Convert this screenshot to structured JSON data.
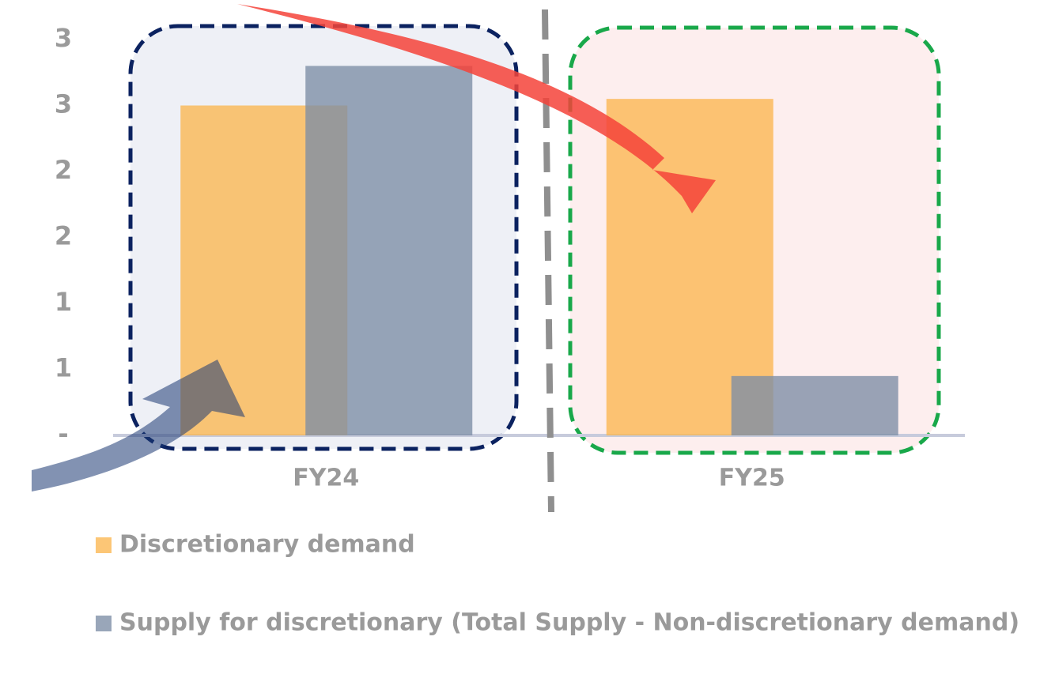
{
  "chart_data": {
    "type": "bar",
    "categories": [
      "FY24",
      "FY25"
    ],
    "series": [
      {
        "name": "Discretionary demand",
        "color": "#fbb650",
        "values": [
          2.5,
          2.55
        ]
      },
      {
        "name": "Supply for discretionary (Total Supply - Non-discretionary demand)",
        "color": "#7c8da5",
        "values": [
          2.8,
          0.45
        ]
      }
    ],
    "ylim": [
      0,
      3
    ],
    "yticks": [
      {
        "value": 0,
        "label": "-"
      },
      {
        "value": 0.5,
        "label": "1"
      },
      {
        "value": 1,
        "label": "1"
      },
      {
        "value": 1.5,
        "label": "2"
      },
      {
        "value": 2,
        "label": "2"
      },
      {
        "value": 2.5,
        "label": "3"
      },
      {
        "value": 3,
        "label": "3"
      }
    ],
    "grid": false
  }
}
